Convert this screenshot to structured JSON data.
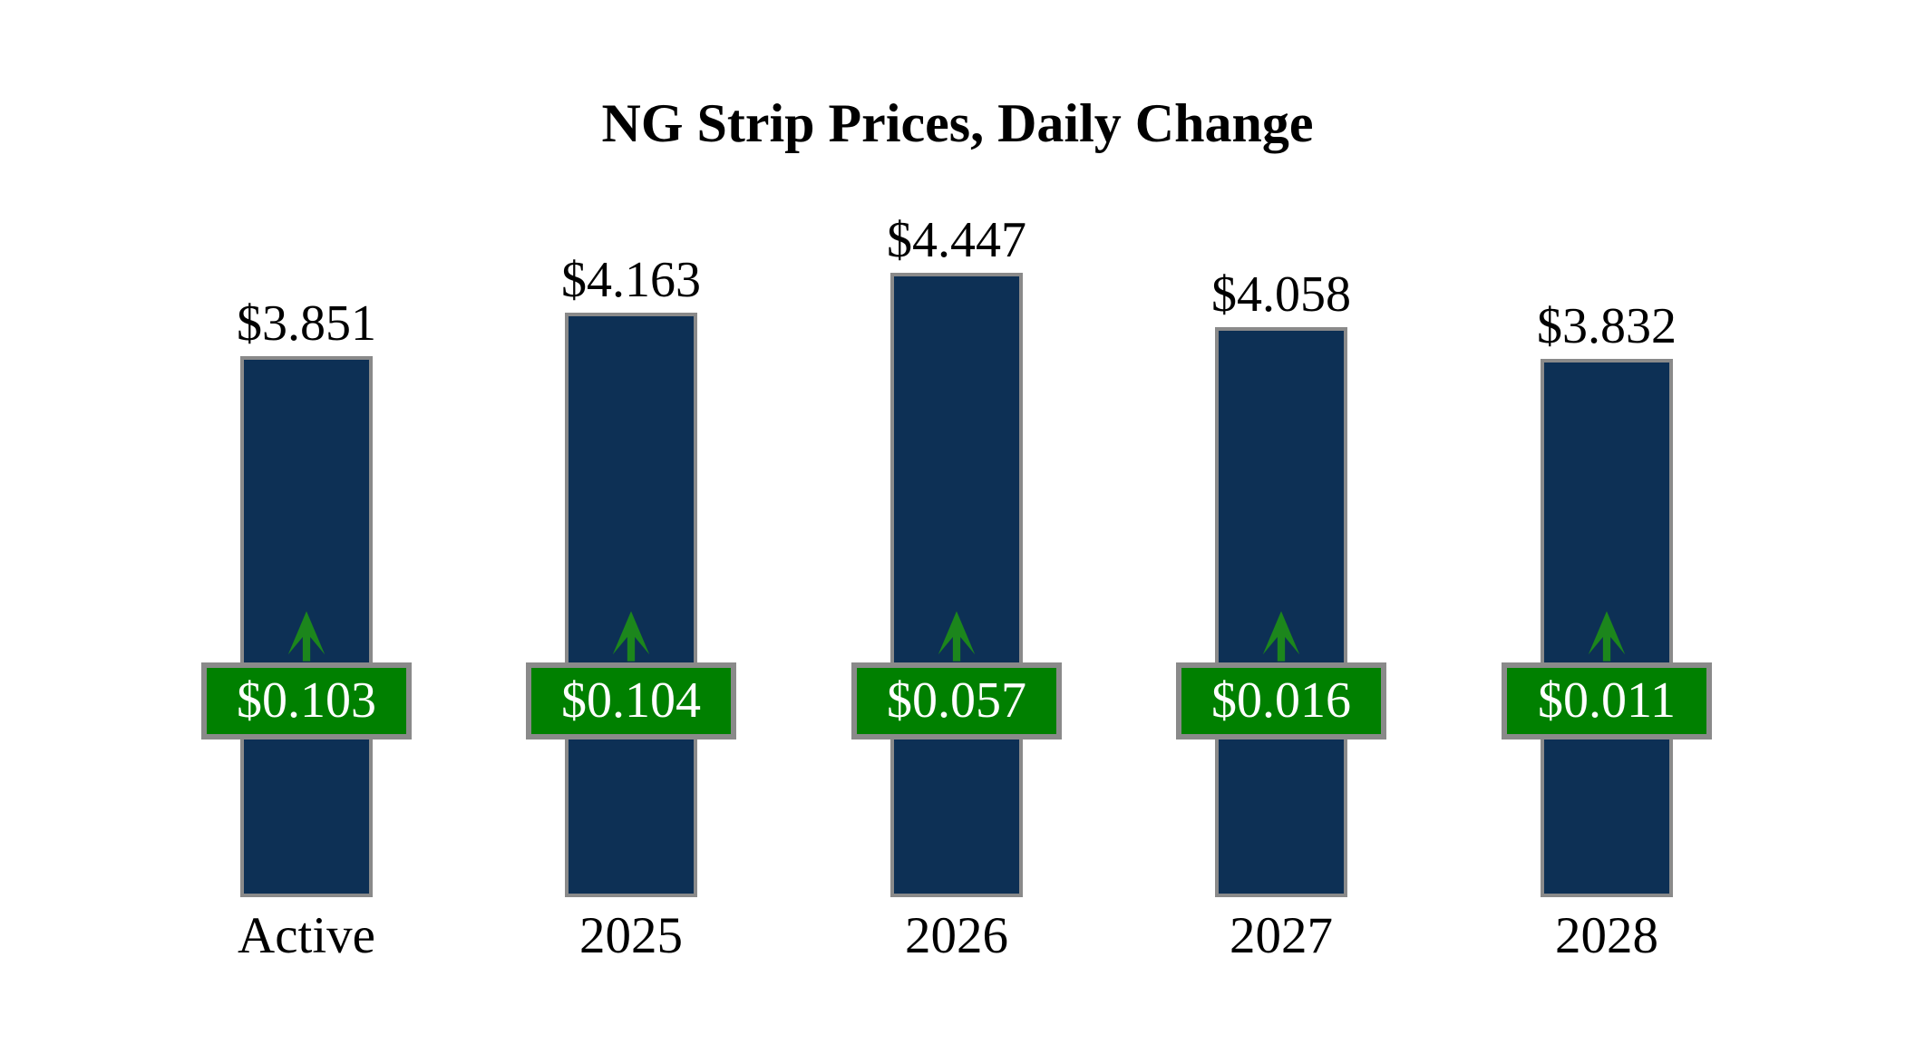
{
  "title": "NG Strip Prices, Daily Change",
  "chart_data": {
    "type": "bar",
    "title": "NG Strip Prices, Daily Change",
    "categories": [
      "Active",
      "2025",
      "2026",
      "2027",
      "2028"
    ],
    "series": [
      {
        "name": "strip_price",
        "unit": "USD",
        "values": [
          3.851,
          4.163,
          4.447,
          4.058,
          3.832
        ],
        "labels": [
          "$3.851",
          "$4.163",
          "$4.447",
          "$4.058",
          "$3.832"
        ]
      },
      {
        "name": "daily_change",
        "unit": "USD",
        "direction": "up",
        "values": [
          0.103,
          0.104,
          0.057,
          0.016,
          0.011
        ],
        "labels": [
          "$0.103",
          "$0.104",
          "$0.057",
          "$0.016",
          "$0.011"
        ]
      }
    ],
    "ylim": [
      0,
      4.6
    ],
    "grid": false,
    "legend": "none",
    "axes_visible": false,
    "colors": {
      "bar_fill": "#0d3055",
      "bar_border": "#8a8a8a",
      "badge_fill": "#008000",
      "badge_border": "#8a8a8a",
      "badge_text": "#ffffff",
      "arrow": "#1c861c",
      "label_text": "#000000",
      "background": "#ffffff"
    }
  }
}
